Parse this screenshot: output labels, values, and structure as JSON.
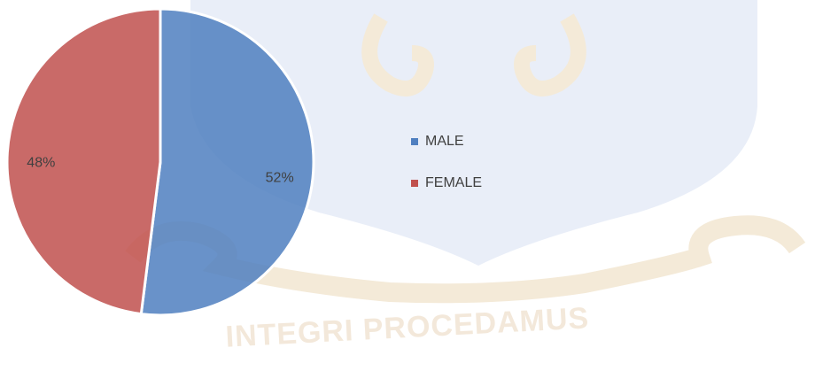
{
  "chart_data": {
    "type": "pie",
    "categories": [
      "MALE",
      "FEMALE"
    ],
    "values": [
      52,
      48
    ],
    "value_labels": [
      "52%",
      "48%"
    ],
    "colors": [
      "#4f7fc0",
      "#c0504d"
    ],
    "legend": "right"
  },
  "watermark": "INTEGRI PROCEDAMUS"
}
